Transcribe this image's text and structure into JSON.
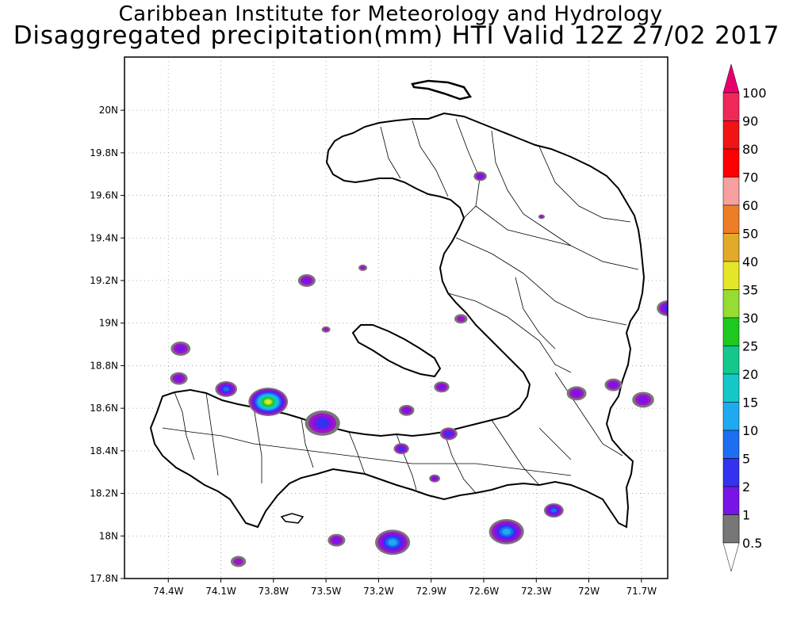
{
  "header": {
    "line1": "Caribbean Institute for Meteorology and Hydrology",
    "line2": "Disaggregated precipitation(mm) HTI Valid 12Z 27/02 2017"
  },
  "map": {
    "lon_range": [
      -74.65,
      -71.55
    ],
    "lat_range": [
      17.8,
      20.25
    ],
    "grid": true,
    "lat_ticks": [
      {
        "v": 20.0,
        "label": "20N"
      },
      {
        "v": 19.8,
        "label": "19.8N"
      },
      {
        "v": 19.6,
        "label": "19.6N"
      },
      {
        "v": 19.4,
        "label": "19.4N"
      },
      {
        "v": 19.2,
        "label": "19.2N"
      },
      {
        "v": 19.0,
        "label": "19N"
      },
      {
        "v": 18.8,
        "label": "18.8N"
      },
      {
        "v": 18.6,
        "label": "18.6N"
      },
      {
        "v": 18.4,
        "label": "18.4N"
      },
      {
        "v": 18.2,
        "label": "18.2N"
      },
      {
        "v": 18.0,
        "label": "18N"
      },
      {
        "v": 17.8,
        "label": "17.8N"
      }
    ],
    "lon_ticks": [
      {
        "v": -74.4,
        "label": "74.4W"
      },
      {
        "v": -74.1,
        "label": "74.1W"
      },
      {
        "v": -73.8,
        "label": "73.8W"
      },
      {
        "v": -73.5,
        "label": "73.5W"
      },
      {
        "v": -73.2,
        "label": "73.2W"
      },
      {
        "v": -72.9,
        "label": "72.9W"
      },
      {
        "v": -72.6,
        "label": "72.6W"
      },
      {
        "v": -72.3,
        "label": "72.3W"
      },
      {
        "v": -72.0,
        "label": "72W"
      },
      {
        "v": -71.7,
        "label": "71.7W"
      }
    ]
  },
  "colorbar": {
    "levels": [
      {
        "label": "100",
        "color": "#f0285a"
      },
      {
        "label": "90",
        "color": "#f01414"
      },
      {
        "label": "80",
        "color": "#ff0000"
      },
      {
        "label": "70",
        "color": "#f7a0a0"
      },
      {
        "label": "60",
        "color": "#ee7d28"
      },
      {
        "label": "50",
        "color": "#e1aa28"
      },
      {
        "label": "40",
        "color": "#e6e628"
      },
      {
        "label": "35",
        "color": "#96dc32"
      },
      {
        "label": "30",
        "color": "#1ec81e"
      },
      {
        "label": "25",
        "color": "#14c88c"
      },
      {
        "label": "20",
        "color": "#14c8c8"
      },
      {
        "label": "15",
        "color": "#1eaaf0"
      },
      {
        "label": "10",
        "color": "#1e6ef0"
      },
      {
        "label": "5",
        "color": "#3232f0"
      },
      {
        "label": "2",
        "color": "#7814e6"
      },
      {
        "label": "1",
        "color": "#a014c8"
      },
      {
        "label": "0.5",
        "color": "#777777"
      }
    ],
    "top_color": "#e6006e",
    "bottom_color": "#ffffff"
  },
  "precip_blobs": [
    {
      "name": "cell-74.4w-18.9n",
      "lon": -74.33,
      "lat": 18.88,
      "r": 0.045,
      "max": 2
    },
    {
      "name": "cell-74.35w-18.74n",
      "lon": -74.34,
      "lat": 18.74,
      "r": 0.04,
      "max": 2
    },
    {
      "name": "cell-74.08w-18.69n",
      "lon": -74.07,
      "lat": 18.69,
      "r": 0.05,
      "max": 10
    },
    {
      "name": "cell-73.83w-18.63n",
      "lon": -73.83,
      "lat": 18.63,
      "r": 0.09,
      "max": 40
    },
    {
      "name": "cell-73.55w-18.54n",
      "lon": -73.52,
      "lat": 18.53,
      "r": 0.08,
      "max": 5
    },
    {
      "name": "cell-73.61w-19.2n",
      "lon": -73.61,
      "lat": 19.2,
      "r": 0.04,
      "max": 2
    },
    {
      "name": "cell-72.65w-19.69n",
      "lon": -72.62,
      "lat": 19.69,
      "r": 0.03,
      "max": 2
    },
    {
      "name": "cell-72.73w-19.02n",
      "lon": -72.73,
      "lat": 19.02,
      "r": 0.03,
      "max": 1
    },
    {
      "name": "cell-72.85w-18.7n",
      "lon": -72.84,
      "lat": 18.7,
      "r": 0.035,
      "max": 2
    },
    {
      "name": "cell-73.04w-18.59n",
      "lon": -73.04,
      "lat": 18.59,
      "r": 0.035,
      "max": 2
    },
    {
      "name": "cell-72.82w-18.48n",
      "lon": -72.8,
      "lat": 18.48,
      "r": 0.04,
      "max": 5
    },
    {
      "name": "cell-73.07w-18.4n",
      "lon": -73.07,
      "lat": 18.41,
      "r": 0.035,
      "max": 5
    },
    {
      "name": "cell-72.9w-18.27n",
      "lon": -72.88,
      "lat": 18.27,
      "r": 0.025,
      "max": 2
    },
    {
      "name": "cell-72.07w-18.67n",
      "lon": -72.07,
      "lat": 18.67,
      "r": 0.045,
      "max": 2
    },
    {
      "name": "cell-71.88w-18.7n",
      "lon": -71.86,
      "lat": 18.71,
      "r": 0.04,
      "max": 2
    },
    {
      "name": "cell-71.7w-18.64n",
      "lon": -71.69,
      "lat": 18.64,
      "r": 0.05,
      "max": 2
    },
    {
      "name": "cell-71.55w-19.07n",
      "lon": -71.55,
      "lat": 19.07,
      "r": 0.05,
      "max": 5
    },
    {
      "name": "cell-73.13w-17.97n",
      "lon": -73.12,
      "lat": 17.97,
      "r": 0.08,
      "max": 15
    },
    {
      "name": "cell-73.45w-17.98n",
      "lon": -73.44,
      "lat": 17.98,
      "r": 0.04,
      "max": 2
    },
    {
      "name": "cell-72.48w-18.02n",
      "lon": -72.47,
      "lat": 18.02,
      "r": 0.08,
      "max": 15
    },
    {
      "name": "cell-72.18w-18.12n",
      "lon": -72.2,
      "lat": 18.12,
      "r": 0.045,
      "max": 10
    },
    {
      "name": "cell-74.03w-17.88n",
      "lon": -74.0,
      "lat": 17.88,
      "r": 0.035,
      "max": 1
    },
    {
      "name": "cell-73.3w-19.26n",
      "lon": -73.29,
      "lat": 19.26,
      "r": 0.02,
      "max": 1
    },
    {
      "name": "cell-72.3w-19.5n",
      "lon": -72.27,
      "lat": 19.5,
      "r": 0.015,
      "max": 1
    },
    {
      "name": "cell-73.58w-18.97n",
      "lon": -73.5,
      "lat": 18.97,
      "r": 0.02,
      "max": 1
    }
  ]
}
